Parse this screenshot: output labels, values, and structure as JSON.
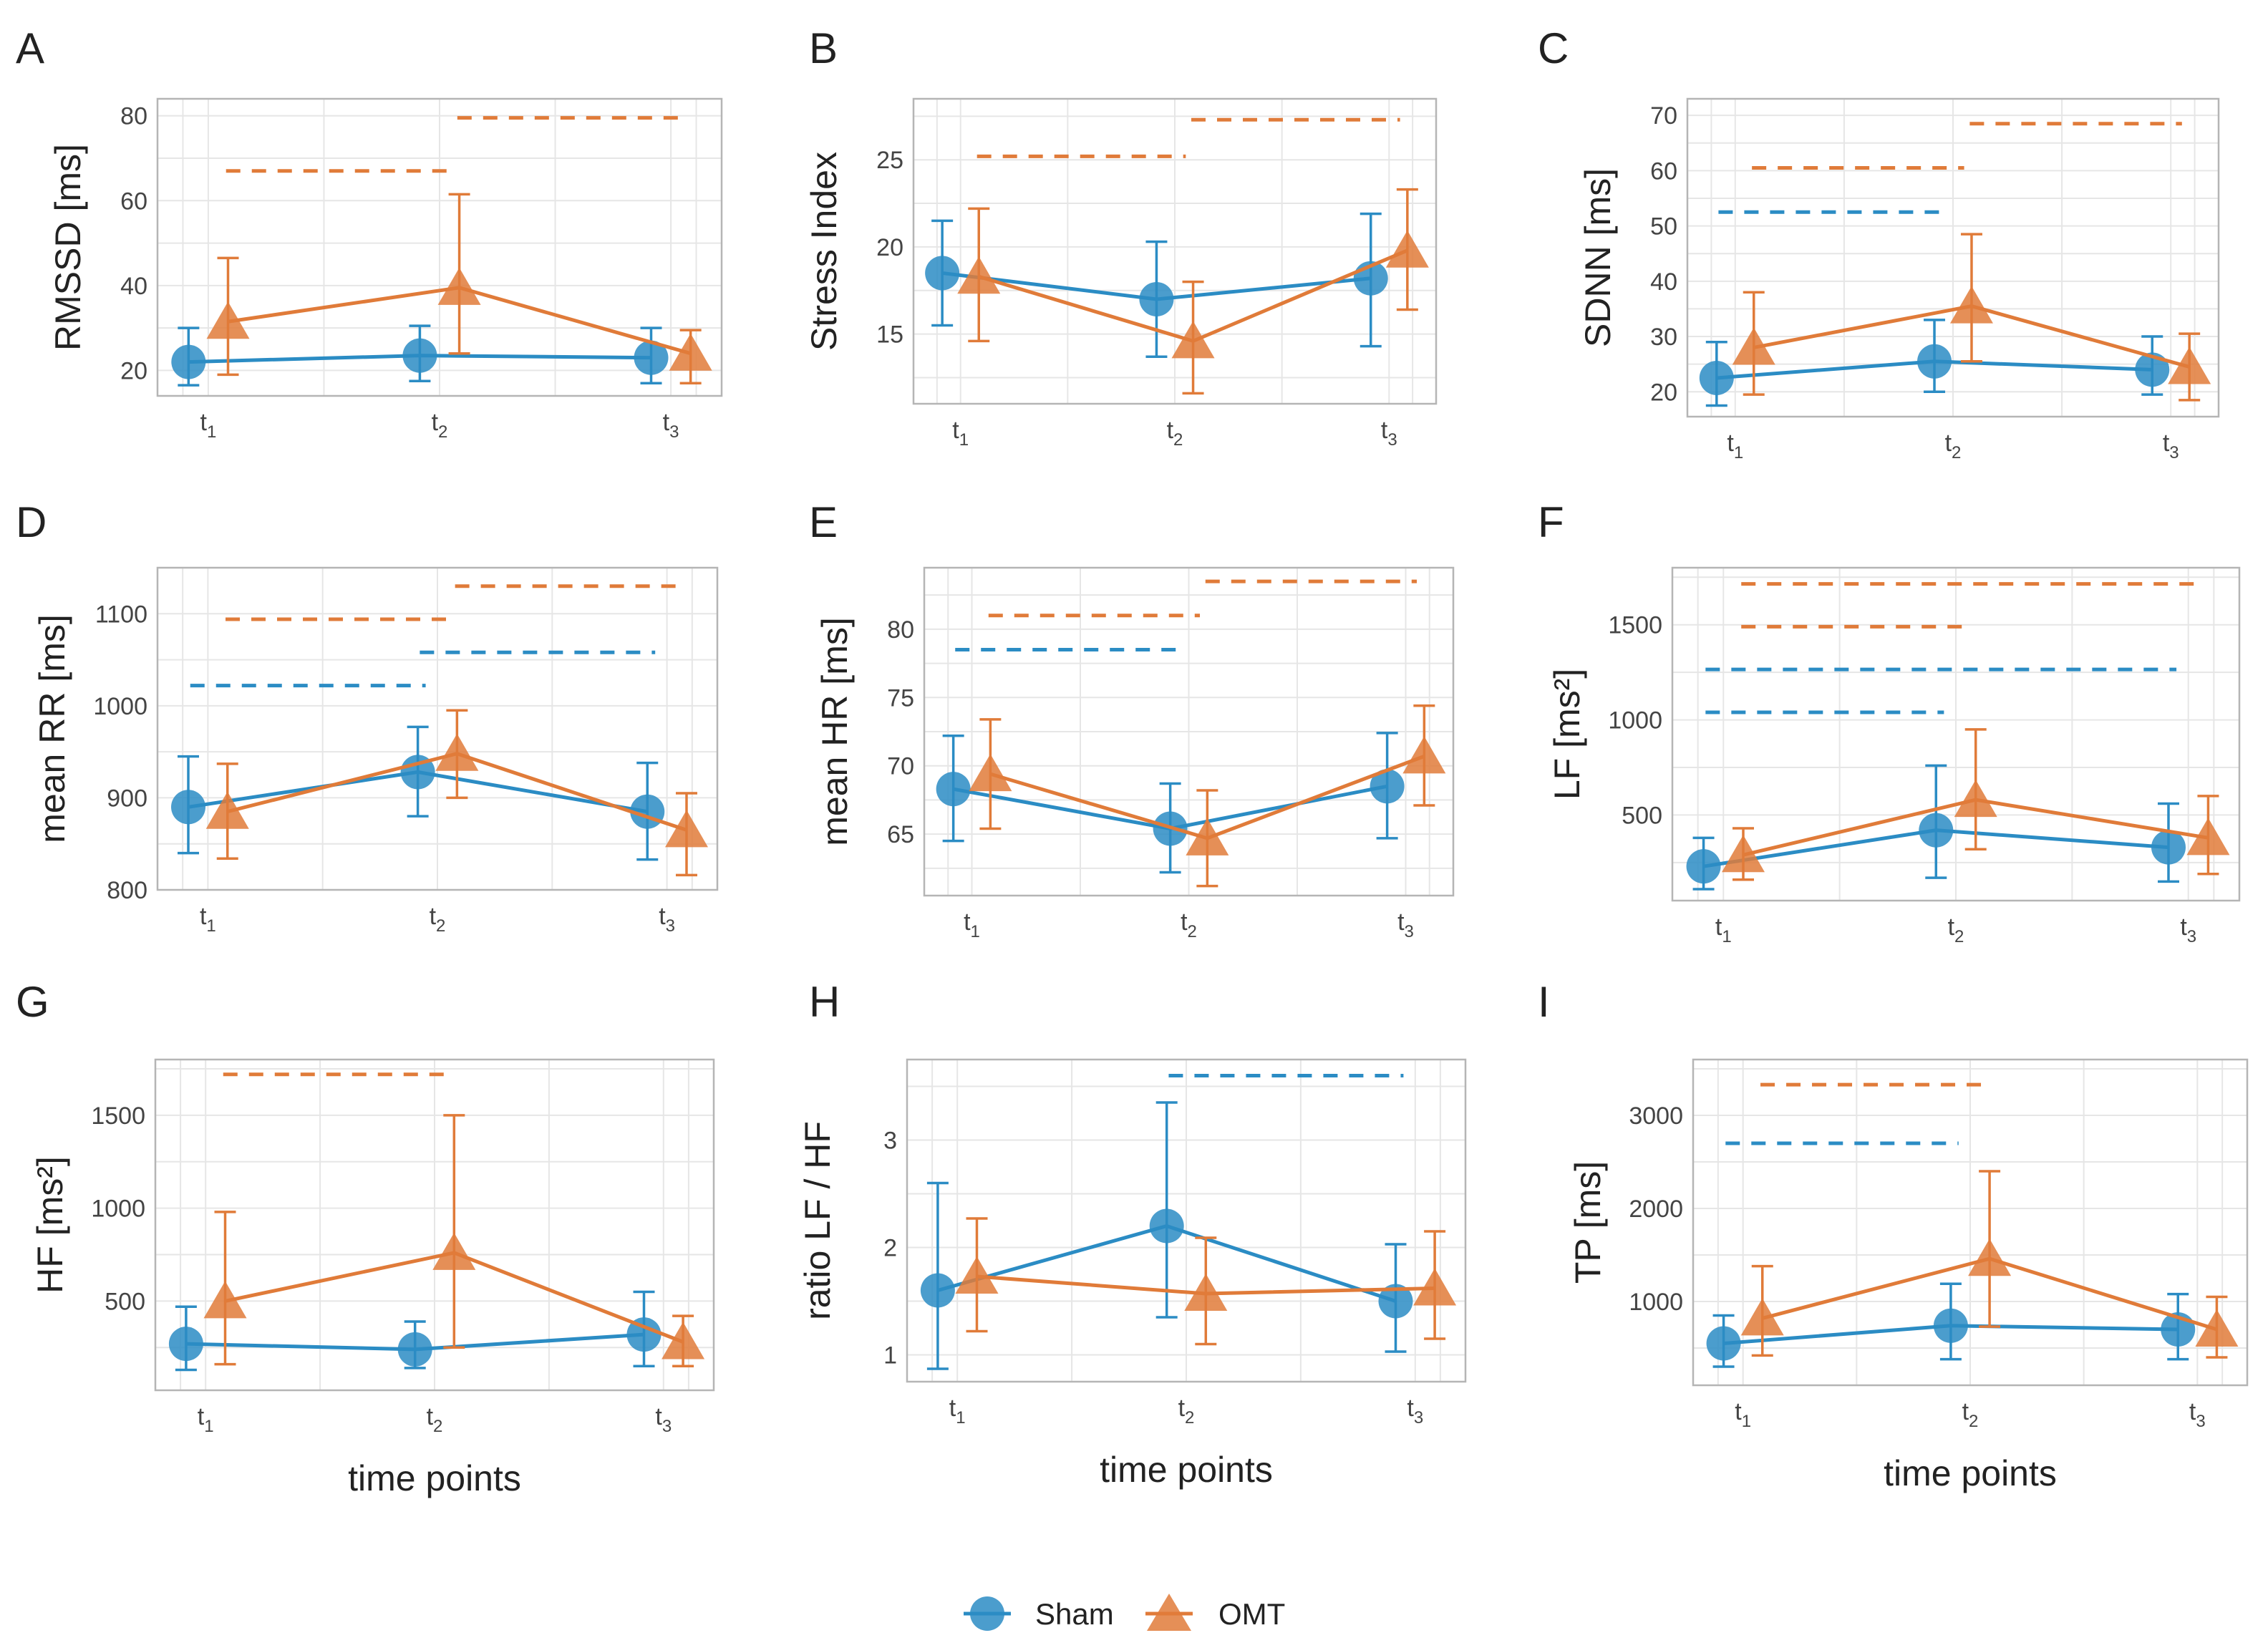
{
  "colors": {
    "sham": "#2b8cc4",
    "omt": "#e07b39",
    "grid": "#e6e6e6",
    "frame": "#b5b5b5"
  },
  "legend": [
    {
      "name": "Sham",
      "marker": "circle"
    },
    {
      "name": "OMT",
      "marker": "triangle"
    }
  ],
  "xlabel": "time points",
  "chart_data": [
    {
      "panel": "A",
      "type": "line",
      "ylabel": "RMSSD [ms]",
      "x": [
        "t1",
        "t2",
        "t3"
      ],
      "ylim": [
        14,
        84
      ],
      "yticks": [
        20,
        40,
        60,
        80
      ],
      "series": [
        {
          "name": "Sham",
          "values": [
            22,
            23.5,
            23
          ],
          "err_low": [
            16.5,
            17.5,
            17
          ],
          "err_high": [
            30,
            30.5,
            30
          ]
        },
        {
          "name": "OMT",
          "values": [
            31.5,
            39.5,
            24
          ],
          "err_low": [
            19,
            24,
            17
          ],
          "err_high": [
            46.5,
            61.5,
            29.5
          ]
        }
      ],
      "brackets": [
        {
          "series": "OMT",
          "from": "t1",
          "to": "t2",
          "y": 67
        },
        {
          "series": "OMT",
          "from": "t2",
          "to": "t3",
          "y": 79.5
        }
      ]
    },
    {
      "panel": "B",
      "type": "line",
      "ylabel": "Stress Index",
      "x": [
        "t1",
        "t2",
        "t3"
      ],
      "ylim": [
        11,
        28.5
      ],
      "yticks": [
        15,
        20,
        25
      ],
      "series": [
        {
          "name": "Sham",
          "values": [
            18.5,
            17,
            18.2
          ],
          "err_low": [
            15.5,
            13.7,
            14.3
          ],
          "err_high": [
            21.5,
            20.3,
            21.9
          ]
        },
        {
          "name": "OMT",
          "values": [
            18.3,
            14.6,
            19.8
          ],
          "err_low": [
            14.6,
            11.6,
            16.4
          ],
          "err_high": [
            22.2,
            18,
            23.3
          ]
        }
      ],
      "brackets": [
        {
          "series": "OMT",
          "from": "t1",
          "to": "t2",
          "y": 25.2
        },
        {
          "series": "OMT",
          "from": "t2",
          "to": "t3",
          "y": 27.3
        }
      ]
    },
    {
      "panel": "C",
      "type": "line",
      "ylabel": "SDNN [ms]",
      "x": [
        "t1",
        "t2",
        "t3"
      ],
      "ylim": [
        15.5,
        73
      ],
      "yticks": [
        20,
        30,
        40,
        50,
        60,
        70
      ],
      "series": [
        {
          "name": "Sham",
          "values": [
            22.5,
            25.5,
            24
          ],
          "err_low": [
            17.5,
            20,
            19.5
          ],
          "err_high": [
            29,
            33,
            30
          ]
        },
        {
          "name": "OMT",
          "values": [
            28,
            35.5,
            24.5
          ],
          "err_low": [
            19.5,
            25.5,
            18.5
          ],
          "err_high": [
            38,
            48.5,
            30.5
          ]
        }
      ],
      "brackets": [
        {
          "series": "Sham",
          "from": "t1",
          "to": "t2",
          "y": 52.5
        },
        {
          "series": "OMT",
          "from": "t1",
          "to": "t2",
          "y": 60.5
        },
        {
          "series": "OMT",
          "from": "t2",
          "to": "t3",
          "y": 68.5
        }
      ]
    },
    {
      "panel": "D",
      "type": "line",
      "ylabel": "mean RR [ms]",
      "x": [
        "t1",
        "t2",
        "t3"
      ],
      "ylim": [
        800,
        1150
      ],
      "yticks": [
        800,
        900,
        1000,
        1100
      ],
      "series": [
        {
          "name": "Sham",
          "values": [
            890,
            928,
            885
          ],
          "err_low": [
            840,
            880,
            833
          ],
          "err_high": [
            945,
            977,
            938
          ]
        },
        {
          "name": "OMT",
          "values": [
            885,
            948,
            865
          ],
          "err_low": [
            834,
            900,
            816
          ],
          "err_high": [
            937,
            995,
            905
          ]
        }
      ],
      "brackets": [
        {
          "series": "Sham",
          "from": "t1",
          "to": "t2",
          "y": 1022
        },
        {
          "series": "Sham",
          "from": "t2",
          "to": "t3",
          "y": 1058
        },
        {
          "series": "OMT",
          "from": "t1",
          "to": "t2",
          "y": 1094
        },
        {
          "series": "OMT",
          "from": "t2",
          "to": "t3",
          "y": 1130
        }
      ]
    },
    {
      "panel": "E",
      "type": "line",
      "ylabel": "mean HR [ms]",
      "x": [
        "t1",
        "t2",
        "t3"
      ],
      "ylim": [
        60.5,
        84.5
      ],
      "yticks": [
        65,
        70,
        75,
        80
      ],
      "series": [
        {
          "name": "Sham",
          "values": [
            68.3,
            65.4,
            68.5
          ],
          "err_low": [
            64.5,
            62.2,
            64.7
          ],
          "err_high": [
            72.2,
            68.7,
            72.4
          ]
        },
        {
          "name": "OMT",
          "values": [
            69.4,
            64.7,
            70.7
          ],
          "err_low": [
            65.4,
            61.2,
            67.1
          ],
          "err_high": [
            73.4,
            68.2,
            74.4
          ]
        }
      ],
      "brackets": [
        {
          "series": "Sham",
          "from": "t1",
          "to": "t2",
          "y": 78.5
        },
        {
          "series": "OMT",
          "from": "t1",
          "to": "t2",
          "y": 81
        },
        {
          "series": "OMT",
          "from": "t2",
          "to": "t3",
          "y": 83.5
        }
      ]
    },
    {
      "panel": "F",
      "type": "line",
      "ylabel": "LF [ms²]",
      "x": [
        "t1",
        "t2",
        "t3"
      ],
      "ylim": [
        50,
        1800
      ],
      "yticks": [
        500,
        1000,
        1500
      ],
      "series": [
        {
          "name": "Sham",
          "values": [
            230,
            420,
            330
          ],
          "err_low": [
            110,
            170,
            150
          ],
          "err_high": [
            380,
            760,
            560
          ]
        },
        {
          "name": "OMT",
          "values": [
            290,
            580,
            380
          ],
          "err_low": [
            160,
            320,
            190
          ],
          "err_high": [
            430,
            950,
            600
          ]
        }
      ],
      "brackets": [
        {
          "series": "Sham",
          "from": "t1",
          "to": "t2",
          "y": 1040
        },
        {
          "series": "Sham",
          "from": "t1",
          "to": "t3",
          "y": 1265
        },
        {
          "series": "OMT",
          "from": "t1",
          "to": "t2",
          "y": 1490
        },
        {
          "series": "OMT",
          "from": "t1",
          "to": "t3",
          "y": 1715
        }
      ]
    },
    {
      "panel": "G",
      "type": "line",
      "ylabel": "HF [ms²]",
      "x": [
        "t1",
        "t2",
        "t3"
      ],
      "ylim": [
        20,
        1800
      ],
      "yticks": [
        500,
        1000,
        1500
      ],
      "series": [
        {
          "name": "Sham",
          "values": [
            270,
            240,
            320
          ],
          "err_low": [
            130,
            140,
            150
          ],
          "err_high": [
            470,
            390,
            550
          ]
        },
        {
          "name": "OMT",
          "values": [
            500,
            760,
            280
          ],
          "err_low": [
            160,
            250,
            150
          ],
          "err_high": [
            980,
            1500,
            420
          ]
        }
      ],
      "brackets": [
        {
          "series": "OMT",
          "from": "t1",
          "to": "t2",
          "y": 1720
        }
      ]
    },
    {
      "panel": "H",
      "type": "line",
      "ylabel": "ratio LF / HF",
      "x": [
        "t1",
        "t2",
        "t3"
      ],
      "ylim": [
        0.75,
        3.75
      ],
      "yticks": [
        1,
        2,
        3
      ],
      "series": [
        {
          "name": "Sham",
          "values": [
            1.6,
            2.2,
            1.5
          ],
          "err_low": [
            0.87,
            1.35,
            1.03
          ],
          "err_high": [
            2.6,
            3.35,
            2.03
          ]
        },
        {
          "name": "OMT",
          "values": [
            1.73,
            1.57,
            1.62
          ],
          "err_low": [
            1.22,
            1.1,
            1.15
          ],
          "err_high": [
            2.27,
            2.09,
            2.15
          ]
        }
      ],
      "brackets": [
        {
          "series": "Sham",
          "from": "t2",
          "to": "t3",
          "y": 3.6
        }
      ]
    },
    {
      "panel": "I",
      "type": "line",
      "ylabel": "TP [ms]",
      "x": [
        "t1",
        "t2",
        "t3"
      ],
      "ylim": [
        100,
        3600
      ],
      "yticks": [
        1000,
        2000,
        3000
      ],
      "series": [
        {
          "name": "Sham",
          "values": [
            550,
            740,
            700
          ],
          "err_low": [
            300,
            380,
            380
          ],
          "err_high": [
            850,
            1190,
            1080
          ]
        },
        {
          "name": "OMT",
          "values": [
            820,
            1460,
            700
          ],
          "err_low": [
            420,
            730,
            400
          ],
          "err_high": [
            1380,
            2400,
            1050
          ]
        }
      ],
      "brackets": [
        {
          "series": "Sham",
          "from": "t1",
          "to": "t2",
          "y": 2700
        },
        {
          "series": "OMT",
          "from": "t1",
          "to": "t2",
          "y": 3330
        }
      ]
    }
  ]
}
